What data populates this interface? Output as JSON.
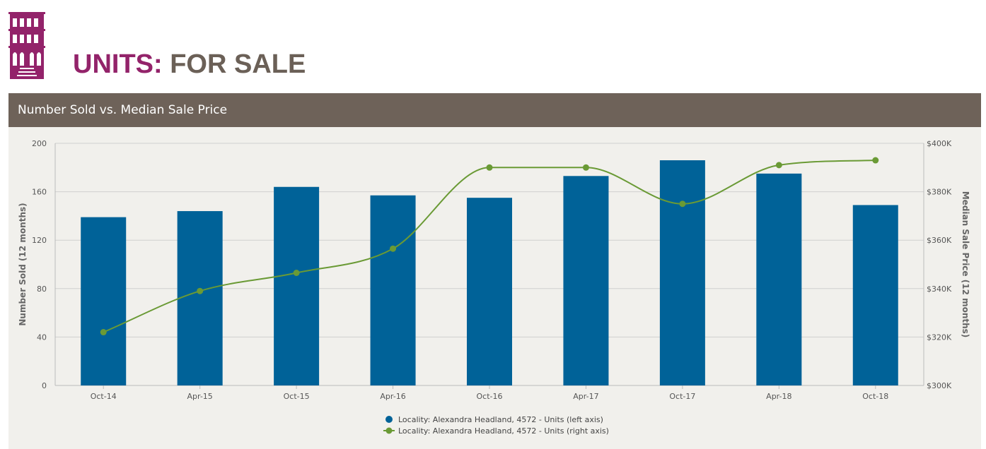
{
  "header": {
    "title_part1": "UNITS:",
    "title_part2": "FOR SALE",
    "logo_icon": "building-logo-icon"
  },
  "panel": {
    "title": "Number Sold vs. Median Sale Price"
  },
  "colors": {
    "brand_purple": "#93236a",
    "brand_taupe": "#6b6057",
    "panel_header": "#6e6259",
    "panel_bg": "#f1f0ec",
    "bar": "#006298",
    "line": "#6a9a35"
  },
  "chart_data": {
    "type": "bar",
    "categories": [
      "Oct-14",
      "Apr-15",
      "Oct-15",
      "Apr-16",
      "Oct-16",
      "Apr-17",
      "Oct-17",
      "Apr-18",
      "Oct-18"
    ],
    "series": [
      {
        "name": "Locality: Alexandra Headland, 4572 - Units (left axis)",
        "type": "bar",
        "axis": "left",
        "values": [
          139,
          144,
          164,
          157,
          155,
          173,
          186,
          175,
          149
        ]
      },
      {
        "name": "Locality: Alexandra Headland, 4572 - Units (right axis)",
        "type": "line",
        "axis": "right",
        "values": [
          322000,
          339000,
          346500,
          356500,
          390000,
          390000,
          375000,
          391000,
          393000
        ]
      }
    ],
    "title": "Number Sold vs. Median Sale Price",
    "ylabel": "Number Sold (12 months)",
    "ylabel_right": "Median Sale Price (12 months)",
    "ylim": [
      0,
      200
    ],
    "y_ticks": [
      "0",
      "40",
      "80",
      "120",
      "160",
      "200"
    ],
    "y_tick_values": [
      0,
      40,
      80,
      120,
      160,
      200
    ],
    "ylim_right": [
      300000,
      400000
    ],
    "y_right_ticks": [
      "$300K",
      "$320K",
      "$340K",
      "$360K",
      "$380K",
      "$400K"
    ],
    "y_right_tick_values": [
      300000,
      320000,
      340000,
      360000,
      380000,
      400000
    ],
    "grid": true,
    "legend_position": "bottom-center"
  }
}
